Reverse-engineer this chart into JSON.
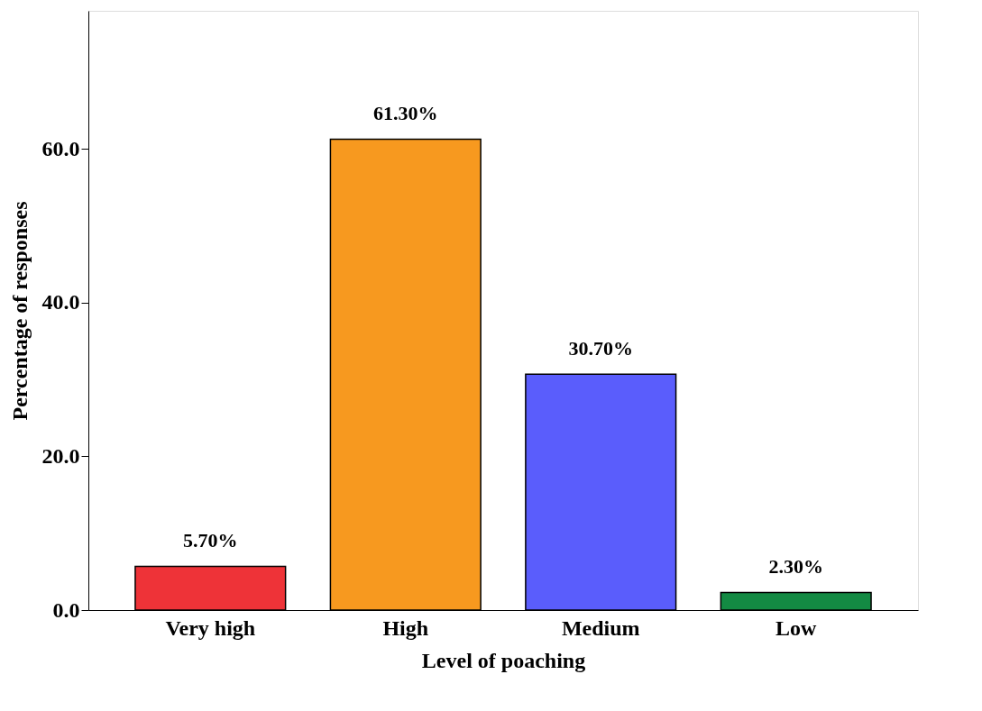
{
  "chart_data": {
    "type": "bar",
    "xlabel": "Level of poaching",
    "ylabel": "Percentage of responses",
    "categories": [
      "Very high",
      "High",
      "Medium",
      "Low"
    ],
    "values": [
      5.7,
      61.3,
      30.7,
      2.3
    ],
    "colors": [
      "#ee3338",
      "#f7991f",
      "#5a5dfc",
      "#138a43"
    ],
    "value_labels": [
      "5.70%",
      "61.30%",
      "30.70%",
      "2.30%"
    ],
    "ylim": [
      0,
      78
    ],
    "yticks": [
      {
        "value": 0,
        "label": "0.0"
      },
      {
        "value": 20,
        "label": "20.0"
      },
      {
        "value": 40,
        "label": "40.0"
      },
      {
        "value": 60,
        "label": "60.0"
      }
    ],
    "grid": false,
    "legend": false
  }
}
